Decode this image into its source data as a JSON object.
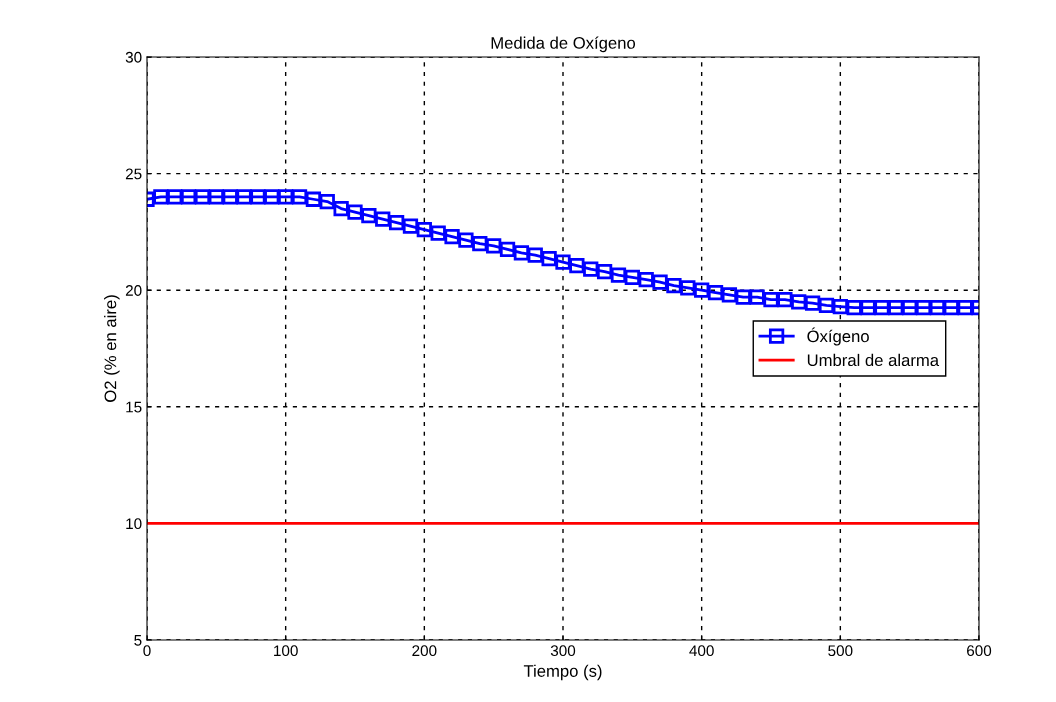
{
  "chart_data": {
    "type": "line",
    "title": "Medida de Oxígeno",
    "xlabel": "Tiempo (s)",
    "ylabel": "O2 (% en aire)",
    "x": [
      0,
      10,
      20,
      30,
      40,
      50,
      60,
      70,
      80,
      90,
      100,
      110,
      120,
      130,
      140,
      150,
      160,
      170,
      180,
      190,
      200,
      210,
      220,
      230,
      240,
      250,
      260,
      270,
      280,
      290,
      300,
      310,
      320,
      330,
      340,
      350,
      360,
      370,
      380,
      390,
      400,
      410,
      420,
      430,
      440,
      450,
      460,
      470,
      480,
      490,
      500,
      510,
      520,
      530,
      540,
      550,
      560,
      570,
      580,
      590,
      600
    ],
    "series": [
      {
        "name": "Óxígeno",
        "color": "#0000ff",
        "marker": "square",
        "values": [
          23.9,
          24.0,
          24.0,
          24.0,
          24.0,
          24.0,
          24.0,
          24.0,
          24.0,
          24.0,
          24.0,
          24.0,
          23.9,
          23.8,
          23.5,
          23.35,
          23.2,
          23.05,
          22.9,
          22.75,
          22.6,
          22.45,
          22.3,
          22.15,
          22.0,
          21.9,
          21.75,
          21.6,
          21.5,
          21.35,
          21.2,
          21.05,
          20.9,
          20.8,
          20.65,
          20.55,
          20.45,
          20.35,
          20.2,
          20.1,
          20.0,
          19.9,
          19.8,
          19.7,
          19.7,
          19.6,
          19.6,
          19.5,
          19.45,
          19.35,
          19.3,
          19.25,
          19.25,
          19.25,
          19.25,
          19.25,
          19.25,
          19.25,
          19.25,
          19.25,
          19.25
        ]
      },
      {
        "name": "Umbral de alarma",
        "color": "#ff0000",
        "marker": "none",
        "x": [
          0,
          600
        ],
        "values": [
          10,
          10
        ]
      }
    ],
    "xlim": [
      0,
      600
    ],
    "xticks": [
      0,
      100,
      200,
      300,
      400,
      500,
      600
    ],
    "ylim": [
      5,
      30
    ],
    "yticks": [
      5,
      10,
      15,
      20,
      25,
      30
    ],
    "grid": true,
    "legend": "right",
    "line_style": "solid"
  }
}
